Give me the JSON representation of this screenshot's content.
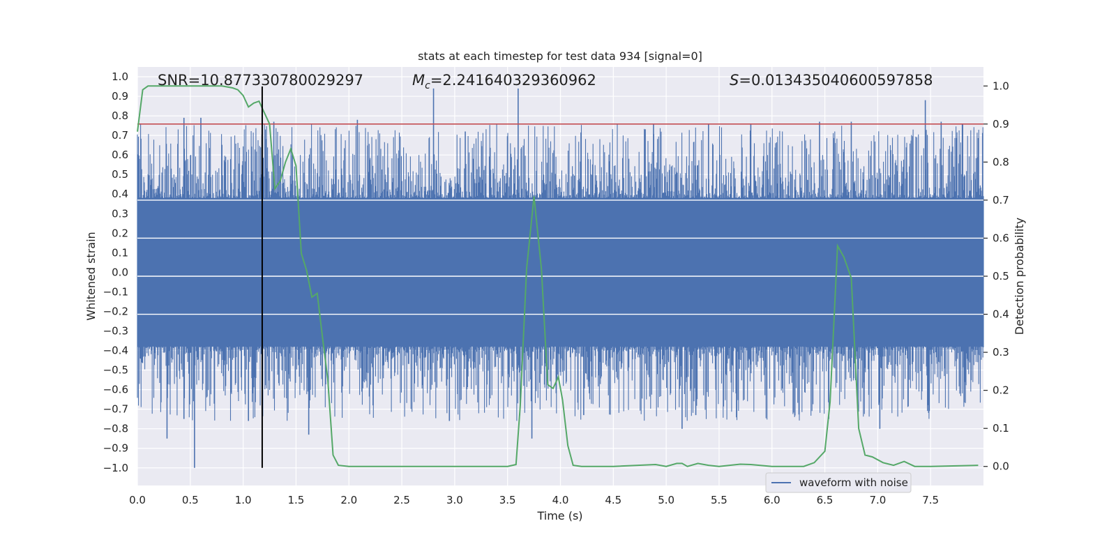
{
  "chart_data": {
    "type": "line",
    "title": "stats at each timestep for test data 934 [signal=0]",
    "xlabel": "Time (s)",
    "ylabel_left": "Whitened strain",
    "ylabel_right": "Detection probability",
    "xlim": [
      0,
      8
    ],
    "ylim_left": [
      -1.09,
      1.05
    ],
    "ylim_right": [
      -0.05,
      1.05
    ],
    "x_ticks": [
      "0.0",
      "0.5",
      "1.0",
      "1.5",
      "2.0",
      "2.5",
      "3.0",
      "3.5",
      "4.0",
      "4.5",
      "5.0",
      "5.5",
      "6.0",
      "6.5",
      "7.0",
      "7.5"
    ],
    "x_tick_values": [
      0,
      0.5,
      1,
      1.5,
      2,
      2.5,
      3,
      3.5,
      4,
      4.5,
      5,
      5.5,
      6,
      6.5,
      7,
      7.5
    ],
    "y_left_ticks": [
      "1.0",
      "0.9",
      "0.8",
      "0.7",
      "0.6",
      "0.5",
      "0.4",
      "0.3",
      "0.2",
      "0.1",
      "0.0",
      "−0.1",
      "−0.2",
      "−0.3",
      "−0.4",
      "−0.5",
      "−0.6",
      "−0.7",
      "−0.8",
      "−0.9",
      "−1.0"
    ],
    "y_left_tick_values": [
      1.0,
      0.9,
      0.8,
      0.7,
      0.6,
      0.5,
      0.4,
      0.3,
      0.2,
      0.1,
      0.0,
      -0.1,
      -0.2,
      -0.3,
      -0.4,
      -0.5,
      -0.6,
      -0.7,
      -0.8,
      -0.9,
      -1.0
    ],
    "y_right_ticks": [
      "1.0",
      "0.9",
      "0.8",
      "0.7",
      "0.6",
      "0.5",
      "0.4",
      "0.3",
      "0.2",
      "0.1",
      "0.0"
    ],
    "y_right_tick_values": [
      1.0,
      0.9,
      0.8,
      0.7,
      0.6,
      0.5,
      0.4,
      0.3,
      0.2,
      0.1,
      0.0
    ],
    "grid": true,
    "legend": {
      "entries": [
        "waveform with noise"
      ],
      "location": "lower-right"
    },
    "annotations": {
      "snr": "SNR=10.877330780029297",
      "mc_symbol": "M",
      "mc_sub": "c",
      "mc_value": "=2.241640329360962",
      "s_symbol": "S",
      "s_value": "=0.013435040600597858"
    },
    "threshold": {
      "value": 0.9,
      "axis": "right",
      "color": "#c44e52"
    },
    "vertical_marker": {
      "x": 1.18,
      "y_from": -1.0,
      "y_to": 0.95,
      "color": "#000000"
    },
    "waveform": {
      "name": "waveform with noise",
      "color": "#4c72b0",
      "description": "dense noise band (body about ±0.35, tips up to ±1.0)",
      "samples": 1600,
      "body_amplitude": 0.35,
      "spikes": [
        {
          "x": 0.28,
          "y": -0.85
        },
        {
          "x": 0.44,
          "y": -0.75
        },
        {
          "x": 0.54,
          "y": -1.0
        },
        {
          "x": 0.6,
          "y": 0.79
        },
        {
          "x": 0.44,
          "y": 0.79
        },
        {
          "x": 1.05,
          "y": -0.76
        },
        {
          "x": 1.18,
          "y": 0.85
        },
        {
          "x": 1.29,
          "y": 0.77
        },
        {
          "x": 1.62,
          "y": -0.83
        },
        {
          "x": 2.08,
          "y": 0.78
        },
        {
          "x": 2.8,
          "y": 0.94
        },
        {
          "x": 2.95,
          "y": -0.76
        },
        {
          "x": 3.6,
          "y": 0.94
        },
        {
          "x": 3.73,
          "y": -0.85
        },
        {
          "x": 4.22,
          "y": -0.73
        },
        {
          "x": 5.15,
          "y": -0.8
        },
        {
          "x": 5.28,
          "y": -0.73
        },
        {
          "x": 5.4,
          "y": 0.76
        },
        {
          "x": 5.8,
          "y": 0.76
        },
        {
          "x": 6.45,
          "y": 0.77
        },
        {
          "x": 6.75,
          "y": 0.77
        },
        {
          "x": 7.02,
          "y": -0.8
        },
        {
          "x": 7.45,
          "y": 0.88
        },
        {
          "x": 7.6,
          "y": 0.77
        },
        {
          "x": 7.8,
          "y": 0.76
        },
        {
          "x": 4.88,
          "y": 0.76
        },
        {
          "x": 3.1,
          "y": 0.72
        }
      ]
    },
    "probability": {
      "name": "detection probability",
      "color": "#55a868",
      "x": [
        0.0,
        0.05,
        0.1,
        0.2,
        0.3,
        0.4,
        0.5,
        0.6,
        0.7,
        0.8,
        0.9,
        0.95,
        1.0,
        1.05,
        1.1,
        1.15,
        1.2,
        1.25,
        1.3,
        1.35,
        1.4,
        1.45,
        1.5,
        1.55,
        1.6,
        1.65,
        1.7,
        1.75,
        1.8,
        1.85,
        1.9,
        2.0,
        2.2,
        2.5,
        2.8,
        3.0,
        3.3,
        3.5,
        3.58,
        3.62,
        3.68,
        3.75,
        3.82,
        3.88,
        3.93,
        3.98,
        4.02,
        4.07,
        4.12,
        4.2,
        4.5,
        4.9,
        5.0,
        5.1,
        5.15,
        5.2,
        5.3,
        5.4,
        5.5,
        5.7,
        5.8,
        6.0,
        6.3,
        6.4,
        6.5,
        6.55,
        6.62,
        6.68,
        6.75,
        6.82,
        6.88,
        6.95,
        7.05,
        7.15,
        7.25,
        7.35,
        7.5,
        7.95
      ],
      "y": [
        0.88,
        0.99,
        1.0,
        1.0,
        1.0,
        1.0,
        1.0,
        1.0,
        1.0,
        1.0,
        0.995,
        0.99,
        0.975,
        0.945,
        0.955,
        0.96,
        0.93,
        0.9,
        0.73,
        0.75,
        0.8,
        0.835,
        0.79,
        0.56,
        0.515,
        0.445,
        0.455,
        0.34,
        0.23,
        0.03,
        0.003,
        0.0,
        0.0,
        0.0,
        0.0,
        0.0,
        0.0,
        0.0,
        0.005,
        0.16,
        0.52,
        0.71,
        0.52,
        0.215,
        0.205,
        0.235,
        0.175,
        0.055,
        0.003,
        0.0,
        0.0,
        0.005,
        0.0,
        0.008,
        0.008,
        0.0,
        0.008,
        0.003,
        0.0,
        0.006,
        0.005,
        0.0,
        0.0,
        0.01,
        0.04,
        0.17,
        0.58,
        0.55,
        0.495,
        0.1,
        0.03,
        0.025,
        0.01,
        0.003,
        0.013,
        0.0,
        0.0,
        0.003
      ]
    },
    "colors": {
      "background": "#eaeaf2",
      "grid": "#ffffff",
      "text": "#222222"
    }
  }
}
